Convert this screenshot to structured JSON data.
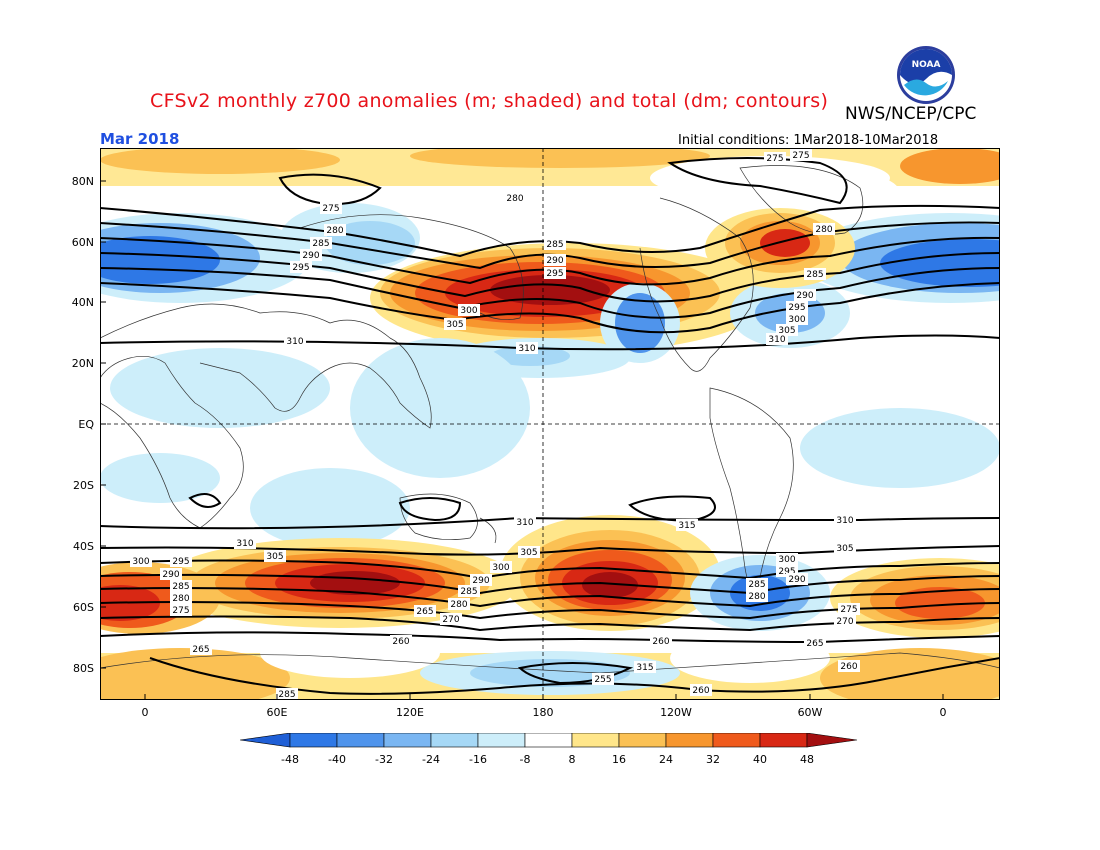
{
  "header": {
    "title": "CFSv2 monthly z700 anomalies (m; shaded) and total (dm; contours)",
    "organization": "NWS/NCEP/CPC",
    "period": "Mar 2018",
    "init_label": "Initial conditions:",
    "init_range": "1Mar2018-10Mar2018",
    "logo_text": "NOAA"
  },
  "axes": {
    "lat_labels": [
      "80N",
      "60N",
      "40N",
      "20N",
      "EQ",
      "20S",
      "40S",
      "60S",
      "80S"
    ],
    "lon_labels": [
      "0",
      "60E",
      "120E",
      "180",
      "120W",
      "60W",
      "0"
    ]
  },
  "colorbar": {
    "ticks": [
      "-48",
      "-40",
      "-32",
      "-24",
      "-16",
      "-8",
      "8",
      "16",
      "24",
      "32",
      "40",
      "48"
    ],
    "colors": [
      "#1f5fd6",
      "#2e78e6",
      "#4f94ec",
      "#7ab6f2",
      "#a6d8f6",
      "#cdeefa",
      "#ffffff",
      "#ffe68a",
      "#fbc154",
      "#f7962e",
      "#ef5a1c",
      "#d82814",
      "#a30f10"
    ]
  },
  "contour_labels": [
    {
      "text": "275"
    },
    {
      "text": "280"
    },
    {
      "text": "285"
    },
    {
      "text": "290"
    },
    {
      "text": "295"
    },
    {
      "text": "300"
    },
    {
      "text": "305"
    },
    {
      "text": "310"
    },
    {
      "text": "315"
    },
    {
      "text": "260"
    },
    {
      "text": "265"
    },
    {
      "text": "255"
    },
    {
      "text": "270"
    }
  ]
}
